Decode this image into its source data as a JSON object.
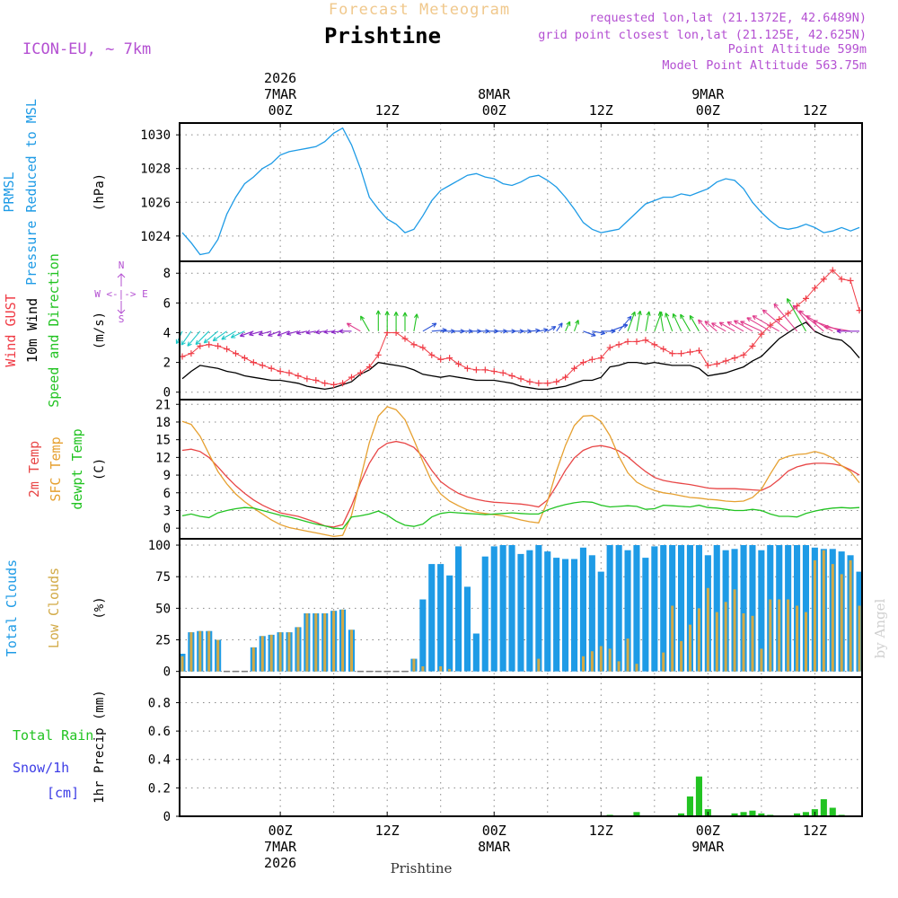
{
  "header": {
    "title_faint": "Forecast Meteogram",
    "station": "Prishtine",
    "model": "ICON-EU, ~ 7km",
    "requested": "requested lon,lat (21.1372E, 42.6489N)",
    "gridpoint": "grid point closest lon,lat (21.125E, 42.625N)",
    "point_alt": "Point Altitude 599m",
    "model_alt": "Model Point Altitude 563.75m",
    "footer_station": "Prishtine",
    "watermark": "by Angel"
  },
  "colors": {
    "pressure": "#1e9be6",
    "gust": "#f03c46",
    "wind": "#000000",
    "green": "#22c322",
    "temp": "#e84646",
    "sfc": "#e6a030",
    "dew": "#22c322",
    "total": "#1e9be6",
    "low": "#d2aa46",
    "rain": "#22c322",
    "snow": "#3c3ce6",
    "purple": "#b450d2",
    "faint": "#f0c88c"
  },
  "time_axis": {
    "top_dates": [
      {
        "t": 0,
        "lines": [
          "2026",
          "7MAR",
          "00Z"
        ]
      },
      {
        "t": 12,
        "lines": [
          "12Z"
        ]
      },
      {
        "t": 24,
        "lines": [
          "8MAR",
          "00Z"
        ]
      },
      {
        "t": 36,
        "lines": [
          "12Z"
        ]
      },
      {
        "t": 48,
        "lines": [
          "9MAR",
          "00Z"
        ]
      },
      {
        "t": 60,
        "lines": [
          "12Z"
        ]
      }
    ],
    "bottom_dates": [
      {
        "t": 0,
        "lines": [
          "00Z",
          "7MAR",
          "2026"
        ]
      },
      {
        "t": 12,
        "lines": [
          "12Z"
        ]
      },
      {
        "t": 24,
        "lines": [
          "00Z",
          "8MAR"
        ]
      },
      {
        "t": 36,
        "lines": [
          "12Z"
        ]
      },
      {
        "t": 48,
        "lines": [
          "00Z",
          "9MAR"
        ]
      },
      {
        "t": 60,
        "lines": [
          "12Z"
        ]
      }
    ],
    "t_start_hours": -11.3,
    "t_end_hours": 65.3
  },
  "chart_data": [
    {
      "type": "line",
      "id": "pressure",
      "label_lines": [
        "PRMSL",
        "Pressure Reduced to MSL"
      ],
      "ylabel": "(hPa)",
      "yticks": [
        1024,
        1026,
        1028,
        1030
      ],
      "ylim": [
        1022.5,
        1030.7
      ],
      "x": [
        -11,
        -10,
        -9,
        -8,
        -7,
        -6,
        -5,
        -4,
        -3,
        -2,
        -1,
        0,
        1,
        2,
        3,
        4,
        5,
        6,
        7,
        8,
        9,
        10,
        11,
        12,
        13,
        14,
        15,
        16,
        17,
        18,
        19,
        20,
        21,
        22,
        23,
        24,
        25,
        26,
        27,
        28,
        29,
        30,
        31,
        32,
        33,
        34,
        35,
        36,
        37,
        38,
        39,
        40,
        41,
        42,
        43,
        44,
        45,
        46,
        47,
        48,
        49,
        50,
        51,
        52,
        53,
        54,
        55,
        56,
        57,
        58,
        59,
        60,
        61,
        62,
        63,
        64,
        65
      ],
      "values": [
        1024.2,
        1023.6,
        1022.9,
        1023.0,
        1023.8,
        1025.3,
        1026.3,
        1027.1,
        1027.5,
        1028.0,
        1028.3,
        1028.8,
        1029.0,
        1029.1,
        1029.2,
        1029.3,
        1029.6,
        1030.1,
        1030.4,
        1029.4,
        1028.0,
        1026.3,
        1025.6,
        1025.0,
        1024.7,
        1024.2,
        1024.4,
        1025.2,
        1026.1,
        1026.7,
        1027.0,
        1027.3,
        1027.6,
        1027.7,
        1027.5,
        1027.4,
        1027.1,
        1027.0,
        1027.2,
        1027.5,
        1027.6,
        1027.3,
        1026.9,
        1026.3,
        1025.6,
        1024.8,
        1024.4,
        1024.2,
        1024.3,
        1024.4,
        1024.9,
        1025.4,
        1025.9,
        1026.1,
        1026.3,
        1026.3,
        1026.5,
        1026.4,
        1026.6,
        1026.8,
        1027.2,
        1027.4,
        1027.3,
        1026.8,
        1026.0,
        1025.4,
        1024.9,
        1024.5,
        1024.4,
        1024.5,
        1024.7,
        1024.5,
        1024.2,
        1024.3,
        1024.5,
        1024.3,
        1024.5
      ]
    },
    {
      "type": "line",
      "id": "wind",
      "label_lines": [
        "Wind GUST",
        "10m Wind",
        "Speed and Direction"
      ],
      "ylabel": "(m/s)",
      "yticks": [
        0,
        2,
        4,
        6,
        8
      ],
      "ylim": [
        -0.5,
        8.8
      ],
      "compass": [
        "N",
        "W <-|-> E",
        "S"
      ],
      "x": [
        -11,
        -10,
        -9,
        -8,
        -7,
        -6,
        -5,
        -4,
        -3,
        -2,
        -1,
        0,
        1,
        2,
        3,
        4,
        5,
        6,
        7,
        8,
        9,
        10,
        11,
        12,
        13,
        14,
        15,
        16,
        17,
        18,
        19,
        20,
        21,
        22,
        23,
        24,
        25,
        26,
        27,
        28,
        29,
        30,
        31,
        32,
        33,
        34,
        35,
        36,
        37,
        38,
        39,
        40,
        41,
        42,
        43,
        44,
        45,
        46,
        47,
        48,
        49,
        50,
        51,
        52,
        53,
        54,
        55,
        56,
        57,
        58,
        59,
        60,
        61,
        62,
        63,
        64,
        65
      ],
      "series": [
        {
          "name": "Wind GUST",
          "values": [
            2.4,
            2.6,
            3.1,
            3.2,
            3.1,
            2.9,
            2.6,
            2.3,
            2.0,
            1.8,
            1.6,
            1.4,
            1.3,
            1.1,
            0.9,
            0.8,
            0.6,
            0.5,
            0.6,
            1.0,
            1.3,
            1.7,
            2.5,
            4.0,
            4.0,
            3.6,
            3.2,
            3.0,
            2.5,
            2.2,
            2.3,
            1.9,
            1.6,
            1.5,
            1.5,
            1.4,
            1.3,
            1.1,
            0.9,
            0.7,
            0.6,
            0.6,
            0.7,
            1.0,
            1.6,
            2.0,
            2.2,
            2.3,
            3.0,
            3.2,
            3.4,
            3.4,
            3.5,
            3.2,
            2.9,
            2.6,
            2.6,
            2.7,
            2.8,
            1.8,
            1.9,
            2.1,
            2.3,
            2.5,
            3.1,
            3.9,
            4.5,
            4.9,
            5.3,
            5.8,
            6.3,
            7.0,
            7.6,
            8.2,
            7.6,
            7.5,
            5.5
          ]
        },
        {
          "name": "10m Wind",
          "values": [
            0.9,
            1.4,
            1.8,
            1.7,
            1.6,
            1.4,
            1.3,
            1.1,
            1.0,
            0.9,
            0.8,
            0.8,
            0.7,
            0.6,
            0.4,
            0.3,
            0.2,
            0.3,
            0.5,
            0.7,
            1.2,
            1.5,
            2.0,
            1.9,
            1.8,
            1.7,
            1.5,
            1.2,
            1.1,
            1.0,
            1.1,
            1.0,
            0.9,
            0.8,
            0.8,
            0.8,
            0.7,
            0.6,
            0.4,
            0.3,
            0.2,
            0.2,
            0.3,
            0.4,
            0.6,
            0.8,
            0.8,
            1.0,
            1.7,
            1.8,
            2.0,
            2.0,
            1.9,
            2.0,
            1.9,
            1.8,
            1.8,
            1.8,
            1.6,
            1.1,
            1.2,
            1.3,
            1.5,
            1.7,
            2.1,
            2.4,
            3.0,
            3.6,
            4.0,
            4.4,
            4.7,
            4.1,
            3.8,
            3.6,
            3.5,
            3.0,
            2.3
          ]
        }
      ],
      "arrow_dirs": [
        205,
        215,
        220,
        225,
        230,
        235,
        240,
        245,
        250,
        255,
        255,
        250,
        250,
        255,
        258,
        260,
        262,
        265,
        265,
        270,
        300,
        330,
        0,
        0,
        0,
        0,
        10,
        60,
        85,
        90,
        90,
        90,
        90,
        90,
        90,
        90,
        90,
        90,
        90,
        85,
        80,
        60,
        35,
        25,
        20,
        110,
        100,
        90,
        70,
        40,
        20,
        10,
        10,
        20,
        350,
        340,
        335,
        330,
        330,
        320,
        310,
        300,
        300,
        300,
        300,
        295,
        300,
        300,
        310,
        320,
        330,
        320,
        310,
        300,
        290,
        280,
        270
      ]
    },
    {
      "type": "line",
      "id": "temperature",
      "label_lines": [
        "2m Temp",
        "SFC Temp",
        "dewpt Temp"
      ],
      "ylabel": "(C)",
      "yticks": [
        0,
        3,
        6,
        9,
        12,
        15,
        18,
        21
      ],
      "ylim": [
        -1.8,
        21.8
      ],
      "x": [
        -11,
        -10,
        -9,
        -8,
        -7,
        -6,
        -5,
        -4,
        -3,
        -2,
        -1,
        0,
        1,
        2,
        3,
        4,
        5,
        6,
        7,
        8,
        9,
        10,
        11,
        12,
        13,
        14,
        15,
        16,
        17,
        18,
        19,
        20,
        21,
        22,
        23,
        24,
        25,
        26,
        27,
        28,
        29,
        30,
        31,
        32,
        33,
        34,
        35,
        36,
        37,
        38,
        39,
        40,
        41,
        42,
        43,
        44,
        45,
        46,
        47,
        48,
        49,
        50,
        51,
        52,
        53,
        54,
        55,
        56,
        57,
        58,
        59,
        60,
        61,
        62,
        63,
        64,
        65
      ],
      "series": [
        {
          "name": "2m Temp",
          "values": [
            13.2,
            13.4,
            13.0,
            12.0,
            10.4,
            8.7,
            7.2,
            5.9,
            4.8,
            3.9,
            3.2,
            2.6,
            2.3,
            2.0,
            1.5,
            1.0,
            0.4,
            0.2,
            0.6,
            3.8,
            7.7,
            11.0,
            13.4,
            14.4,
            14.7,
            14.4,
            13.7,
            12.1,
            9.8,
            7.9,
            6.8,
            5.9,
            5.3,
            4.9,
            4.6,
            4.4,
            4.3,
            4.2,
            4.1,
            3.9,
            3.6,
            4.8,
            7.2,
            9.8,
            11.9,
            13.2,
            13.8,
            14.0,
            13.7,
            13.1,
            12.1,
            10.8,
            9.6,
            8.6,
            8.1,
            7.8,
            7.6,
            7.4,
            7.1,
            6.8,
            6.7,
            6.7,
            6.7,
            6.6,
            6.5,
            6.4,
            7.1,
            8.3,
            9.7,
            10.4,
            10.8,
            11.0,
            11.0,
            10.9,
            10.6,
            9.9,
            9.0
          ]
        },
        {
          "name": "SFC Temp",
          "values": [
            18.1,
            17.6,
            15.6,
            12.6,
            9.6,
            7.5,
            5.8,
            4.5,
            3.4,
            2.4,
            1.4,
            0.6,
            0.1,
            -0.2,
            -0.5,
            -0.8,
            -1.1,
            -1.4,
            -1.2,
            2.2,
            8.4,
            14.5,
            19.0,
            20.6,
            20.1,
            18.4,
            15.0,
            11.3,
            7.9,
            5.8,
            4.6,
            3.8,
            3.1,
            2.7,
            2.5,
            2.3,
            2.1,
            1.8,
            1.4,
            1.1,
            0.9,
            4.6,
            9.7,
            14.0,
            17.4,
            19.0,
            19.1,
            18.1,
            15.7,
            12.2,
            9.4,
            7.8,
            7.0,
            6.4,
            6.0,
            5.8,
            5.5,
            5.2,
            5.1,
            4.9,
            4.8,
            4.6,
            4.5,
            4.6,
            5.2,
            6.6,
            9.2,
            11.6,
            12.2,
            12.5,
            12.6,
            13.0,
            12.6,
            11.9,
            10.6,
            9.6,
            7.7
          ]
        },
        {
          "name": "dewpt Temp",
          "values": [
            2.1,
            2.4,
            2.0,
            1.8,
            2.6,
            3.0,
            3.3,
            3.5,
            3.4,
            3.0,
            2.6,
            2.2,
            1.9,
            1.5,
            1.1,
            0.7,
            0.4,
            0.0,
            -0.1,
            1.9,
            2.1,
            2.4,
            2.9,
            2.2,
            1.2,
            0.5,
            0.3,
            0.7,
            1.9,
            2.5,
            2.7,
            2.6,
            2.5,
            2.4,
            2.3,
            2.4,
            2.5,
            2.6,
            2.5,
            2.4,
            2.4,
            3.1,
            3.6,
            4.0,
            4.3,
            4.5,
            4.4,
            3.9,
            3.6,
            3.7,
            3.8,
            3.7,
            3.2,
            3.3,
            3.9,
            3.8,
            3.7,
            3.6,
            3.9,
            3.5,
            3.4,
            3.2,
            3.0,
            3.0,
            3.2,
            3.0,
            2.4,
            2.0,
            2.0,
            1.9,
            2.5,
            2.9,
            3.2,
            3.4,
            3.5,
            3.4,
            3.5
          ]
        }
      ]
    },
    {
      "type": "bar",
      "id": "clouds",
      "label_lines": [
        "Total Clouds",
        "Low Clouds"
      ],
      "ylabel": "(%)",
      "yticks": [
        0,
        25,
        50,
        75,
        100
      ],
      "ylim": [
        -4.5,
        105
      ],
      "x": [
        -11,
        -10,
        -9,
        -8,
        -7,
        -6,
        -5,
        -4,
        -3,
        -2,
        -1,
        0,
        1,
        2,
        3,
        4,
        5,
        6,
        7,
        8,
        9,
        10,
        11,
        12,
        13,
        14,
        15,
        16,
        17,
        18,
        19,
        20,
        21,
        22,
        23,
        24,
        25,
        26,
        27,
        28,
        29,
        30,
        31,
        32,
        33,
        34,
        35,
        36,
        37,
        38,
        39,
        40,
        41,
        42,
        43,
        44,
        45,
        46,
        47,
        48,
        49,
        50,
        51,
        52,
        53,
        54,
        55,
        56,
        57,
        58,
        59,
        60,
        61,
        62,
        63,
        64,
        65
      ],
      "series": [
        {
          "name": "Total Clouds",
          "values": [
            14,
            31,
            32,
            32,
            25,
            0,
            0,
            0,
            19,
            28,
            29,
            31,
            31,
            35,
            46,
            46,
            46,
            48,
            49,
            33,
            0,
            0,
            0,
            0,
            0,
            0,
            10,
            57,
            85,
            85,
            76,
            99,
            67,
            30,
            91,
            99,
            100,
            100,
            93,
            96,
            100,
            95,
            90,
            89,
            89,
            98,
            92,
            79,
            100,
            100,
            96,
            100,
            90,
            99,
            100,
            100,
            100,
            100,
            100,
            92,
            100,
            96,
            97,
            100,
            100,
            96,
            100,
            100,
            100,
            100,
            100,
            98,
            97,
            97,
            95,
            92,
            79
          ]
        },
        {
          "name": "Low Clouds",
          "values": [
            12,
            31,
            32,
            32,
            25,
            0,
            0,
            0,
            19,
            28,
            29,
            31,
            31,
            35,
            46,
            46,
            46,
            48,
            49,
            33,
            0,
            0,
            0,
            0,
            0,
            0,
            10,
            4,
            0,
            4,
            2,
            0,
            0,
            0,
            0,
            0,
            0,
            0,
            0,
            0,
            10,
            0,
            0,
            0,
            0,
            12,
            16,
            20,
            18,
            8,
            26,
            6,
            0,
            0,
            15,
            52,
            24,
            37,
            50,
            66,
            47,
            55,
            65,
            46,
            44,
            18,
            57,
            57,
            57,
            52,
            47,
            88,
            96,
            85,
            77,
            88,
            52
          ]
        }
      ]
    },
    {
      "type": "bar",
      "id": "precip",
      "label_lines": [
        "Total  Rain",
        "Snow/1h",
        "[cm]"
      ],
      "ylabel": "1hr Precip (mm)",
      "yticks": [
        0,
        0.2,
        0.4,
        0.6,
        0.8
      ],
      "ylim": [
        0,
        0.98
      ],
      "x": [
        37,
        40,
        45,
        46,
        47,
        48,
        51,
        52,
        53,
        54,
        55,
        58,
        59,
        60,
        61,
        62,
        63
      ],
      "values": [
        0.01,
        0.03,
        0.02,
        0.14,
        0.28,
        0.05,
        0.02,
        0.03,
        0.04,
        0.02,
        0.01,
        0.02,
        0.03,
        0.05,
        0.12,
        0.06,
        0.01
      ]
    }
  ]
}
